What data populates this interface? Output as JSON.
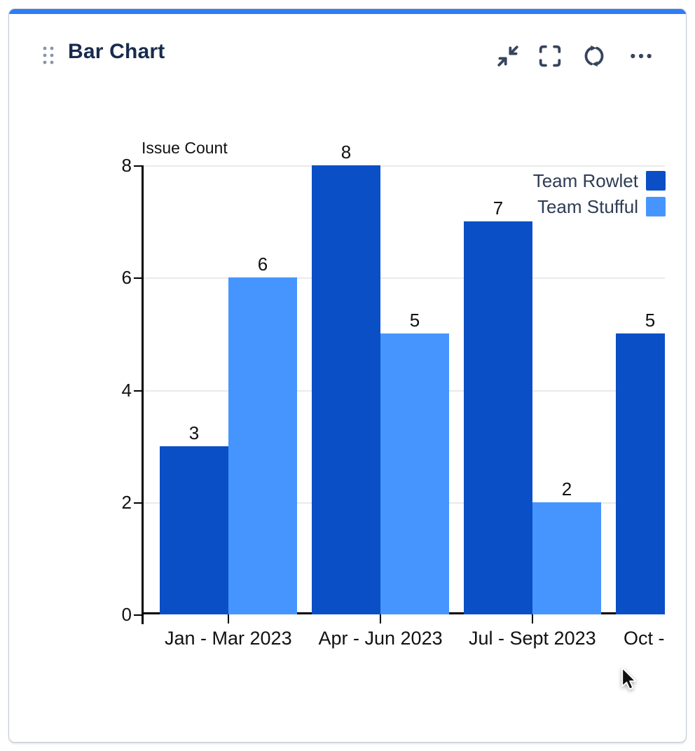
{
  "card": {
    "title": "Bar Chart",
    "accent_color": "#2e7cf6",
    "toolbar": {
      "icons": [
        {
          "name": "collapse"
        },
        {
          "name": "fullscreen"
        },
        {
          "name": "refresh"
        },
        {
          "name": "more-options"
        }
      ]
    }
  },
  "chart_data": {
    "type": "bar",
    "ylabel": "Issue Count",
    "categories": [
      "Jan - Mar 2023",
      "Apr - Jun 2023",
      "Jul - Sept 2023",
      "Oct -"
    ],
    "series": [
      {
        "name": "Team Rowlet",
        "color": "#0a4fc5",
        "values": [
          3,
          8,
          7,
          5
        ]
      },
      {
        "name": "Team Stufful",
        "color": "#4695ff",
        "values": [
          6,
          5,
          2,
          null
        ]
      }
    ],
    "ylim": [
      0,
      8
    ],
    "yticks": [
      0,
      2,
      4,
      6,
      8
    ],
    "grid": true,
    "grid_color": "#e9eaeb",
    "legend_position": "top-right"
  },
  "cursor": {
    "visible": true
  }
}
